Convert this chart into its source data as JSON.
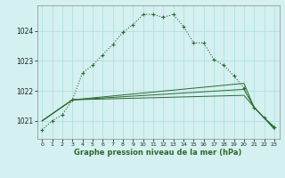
{
  "title": "Graphe pression niveau de la mer (hPa)",
  "bg_color": "#d4f0f0",
  "grid_color": "#aadddd",
  "line_color": "#2d6a2d",
  "x_labels": [
    "0",
    "1",
    "2",
    "3",
    "4",
    "5",
    "6",
    "7",
    "8",
    "9",
    "10",
    "11",
    "12",
    "13",
    "14",
    "15",
    "16",
    "17",
    "18",
    "19",
    "20",
    "21",
    "22",
    "23"
  ],
  "ylim": [
    1020.4,
    1024.85
  ],
  "yticks": [
    1021,
    1022,
    1023,
    1024
  ],
  "line1_x": [
    0,
    1,
    2,
    3,
    4,
    5,
    6,
    7,
    8,
    9,
    10,
    11,
    12,
    13,
    14,
    15,
    16,
    17,
    18,
    19,
    20,
    21,
    22,
    23
  ],
  "line1_y": [
    1020.7,
    1021.0,
    1021.2,
    1021.7,
    1022.6,
    1022.85,
    1023.2,
    1023.55,
    1023.95,
    1024.2,
    1024.55,
    1024.55,
    1024.45,
    1024.55,
    1024.15,
    1023.6,
    1023.6,
    1023.05,
    1022.85,
    1022.5,
    1022.1,
    1021.45,
    1021.1,
    1020.8
  ],
  "line2_x": [
    0,
    3,
    20,
    21,
    22,
    23
  ],
  "line2_y": [
    1021.0,
    1021.7,
    1022.25,
    1021.45,
    1021.1,
    1020.8
  ],
  "line3_x": [
    0,
    3,
    20,
    21,
    22,
    23
  ],
  "line3_y": [
    1021.0,
    1021.7,
    1022.05,
    1021.45,
    1021.1,
    1020.75
  ],
  "line4_x": [
    0,
    3,
    20,
    21,
    22,
    23
  ],
  "line4_y": [
    1021.0,
    1021.7,
    1021.85,
    1021.45,
    1021.1,
    1020.72
  ],
  "figsize": [
    3.2,
    2.0
  ],
  "dpi": 100
}
